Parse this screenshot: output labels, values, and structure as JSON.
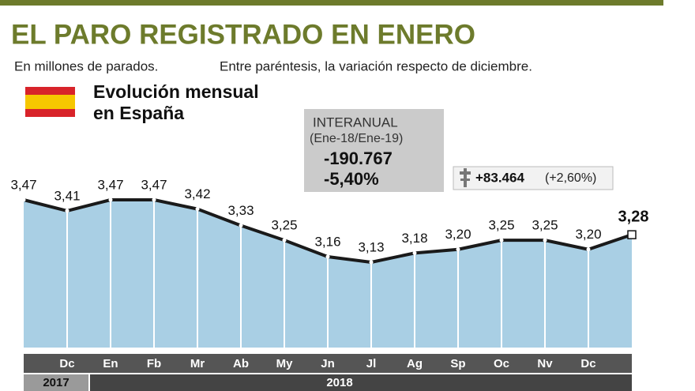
{
  "chart_data": {
    "type": "area",
    "title": "EL PARO REGISTRADO EN ENERO",
    "subtitle": "En millones de parados.",
    "note": "Entre paréntesis, la variación respecto de diciembre.",
    "panel_title": [
      "Evolución mensual",
      "en España"
    ],
    "interannual_box": [
      "INTERANUAL",
      "(Ene-18/Ene-19)",
      "-190.767",
      "-5,40%"
    ],
    "monthly_change": [
      "+83.464",
      "(+2,60%)"
    ],
    "categories": [
      null,
      "Dc",
      "En",
      "Fb",
      "Mr",
      "Ab",
      "My",
      "Jn",
      "Jl",
      "Ag",
      "Sp",
      "Oc",
      "Nv",
      "Dc",
      null
    ],
    "years": [
      "2017",
      "2018"
    ],
    "values": [
      3.47,
      3.41,
      3.47,
      3.47,
      3.42,
      3.33,
      3.25,
      3.16,
      3.13,
      3.18,
      3.2,
      3.25,
      3.25,
      3.2,
      3.28
    ],
    "value_labels": [
      "3,47",
      "3,41",
      "3,47",
      "3,47",
      "3,42",
      "3,33",
      "3,25",
      "3,16",
      "3,13",
      "3,18",
      "3,20",
      "3,25",
      "3,25",
      "3,20",
      "3,28"
    ],
    "color": "#a9cfe4",
    "line_color": "#1a1a1a"
  }
}
